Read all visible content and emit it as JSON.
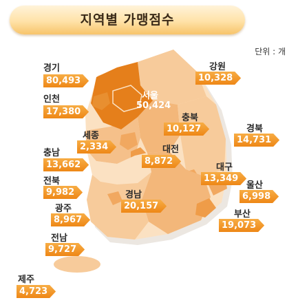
{
  "title": "지역별 가맹점수",
  "unit_label": "단위 : 개",
  "colors": {
    "accent": "#ef8a1a",
    "map_dark": "#e57f1b",
    "map_mid": "#f1a860",
    "map_light": "#f7cb9b",
    "map_pale": "#fbe1c2",
    "map_shadow": "#ece7e1"
  },
  "chart_data": {
    "type": "map",
    "title": "지역별 가맹점수",
    "unit": "개",
    "regions": [
      {
        "name": "경기",
        "value": 80493
      },
      {
        "name": "서울",
        "value": 50424
      },
      {
        "name": "인천",
        "value": 17380
      },
      {
        "name": "강원",
        "value": 10328
      },
      {
        "name": "충북",
        "value": 10127
      },
      {
        "name": "경북",
        "value": 14731
      },
      {
        "name": "세종",
        "value": 2334
      },
      {
        "name": "대전",
        "value": 8872
      },
      {
        "name": "충남",
        "value": 13662
      },
      {
        "name": "대구",
        "value": 13349
      },
      {
        "name": "전북",
        "value": 9982
      },
      {
        "name": "울산",
        "value": 6998
      },
      {
        "name": "광주",
        "value": 8967
      },
      {
        "name": "경남",
        "value": 20157
      },
      {
        "name": "부산",
        "value": 19073
      },
      {
        "name": "전남",
        "value": 9727
      },
      {
        "name": "제주",
        "value": 4723
      }
    ]
  }
}
